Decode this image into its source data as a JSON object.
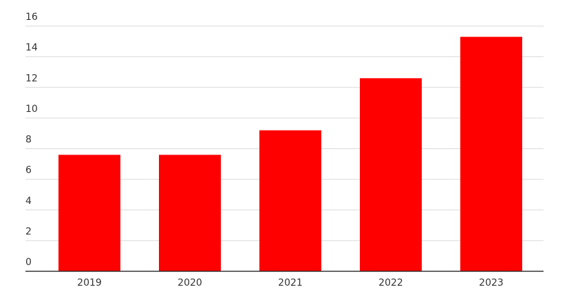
{
  "chart_data": {
    "type": "bar",
    "categories": [
      "2019",
      "2020",
      "2021",
      "2022",
      "2023"
    ],
    "values": [
      7.6,
      7.6,
      9.2,
      12.6,
      15.3
    ],
    "color": "#ff0000",
    "ylim": [
      0,
      16
    ],
    "yticks": [
      0,
      2,
      4,
      6,
      8,
      10,
      12,
      14,
      16
    ],
    "grid": true
  }
}
